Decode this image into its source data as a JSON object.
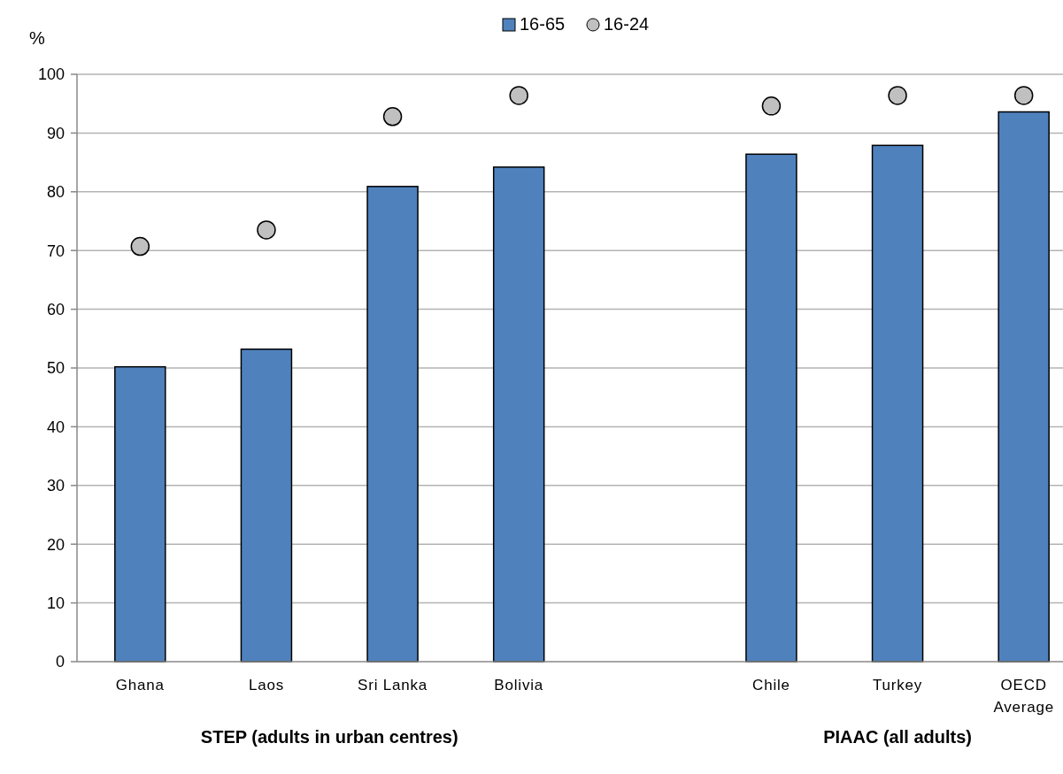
{
  "chart_data": {
    "type": "bar",
    "ylabel": "%",
    "categories": [
      "Ghana",
      "Laos",
      "Sri Lanka",
      "Bolivia",
      null,
      "Chile",
      "Turkey",
      "OECD Average"
    ],
    "series": [
      {
        "name": "16-65",
        "color": "#4f81bd",
        "values": [
          50.2,
          53.2,
          80.9,
          84.2,
          null,
          86.4,
          87.9,
          93.6
        ]
      },
      {
        "name": "16-24",
        "type": "scatter",
        "color": "#c0c0c0",
        "marker": "circle",
        "values": [
          70.7,
          73.5,
          92.8,
          96.4,
          null,
          94.6,
          96.4,
          96.4
        ]
      }
    ],
    "ylim": [
      0,
      100
    ],
    "yticks": [
      0,
      10,
      20,
      30,
      40,
      50,
      60,
      70,
      80,
      90,
      100
    ],
    "grid": "y",
    "legend": "top",
    "annotations": [
      "STEP (adults in urban centres)",
      "PIAAC (all adults)"
    ]
  }
}
